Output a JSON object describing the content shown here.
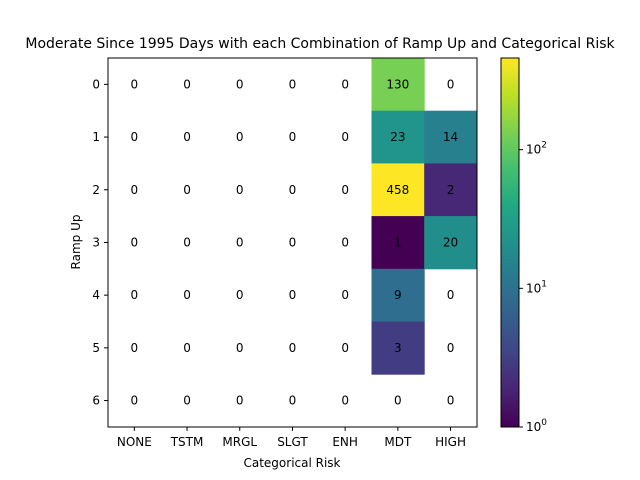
{
  "chart_data": {
    "type": "heatmap",
    "title": "Moderate Since 1995 Days with each Combination of Ramp Up and Categorical Risk",
    "xlabel": "Categorical Risk",
    "ylabel": "Ramp Up",
    "x_categories": [
      "NONE",
      "TSTM",
      "MRGL",
      "SLGT",
      "ENH",
      "MDT",
      "HIGH"
    ],
    "y_categories": [
      "0",
      "1",
      "2",
      "3",
      "4",
      "5",
      "6"
    ],
    "values": [
      [
        0,
        0,
        0,
        0,
        0,
        130,
        0
      ],
      [
        0,
        0,
        0,
        0,
        0,
        23,
        14
      ],
      [
        0,
        0,
        0,
        0,
        0,
        458,
        2
      ],
      [
        0,
        0,
        0,
        0,
        0,
        1,
        20
      ],
      [
        0,
        0,
        0,
        0,
        0,
        9,
        0
      ],
      [
        0,
        0,
        0,
        0,
        0,
        3,
        0
      ],
      [
        0,
        0,
        0,
        0,
        0,
        0,
        0
      ]
    ],
    "colorbar": {
      "scale": "log",
      "colormap": "viridis",
      "range": [
        1,
        458
      ],
      "tick_labels": [
        "10^0",
        "10^1",
        "10^2"
      ],
      "tick_values": [
        1,
        10,
        100
      ]
    },
    "zero_cells": "blank"
  }
}
